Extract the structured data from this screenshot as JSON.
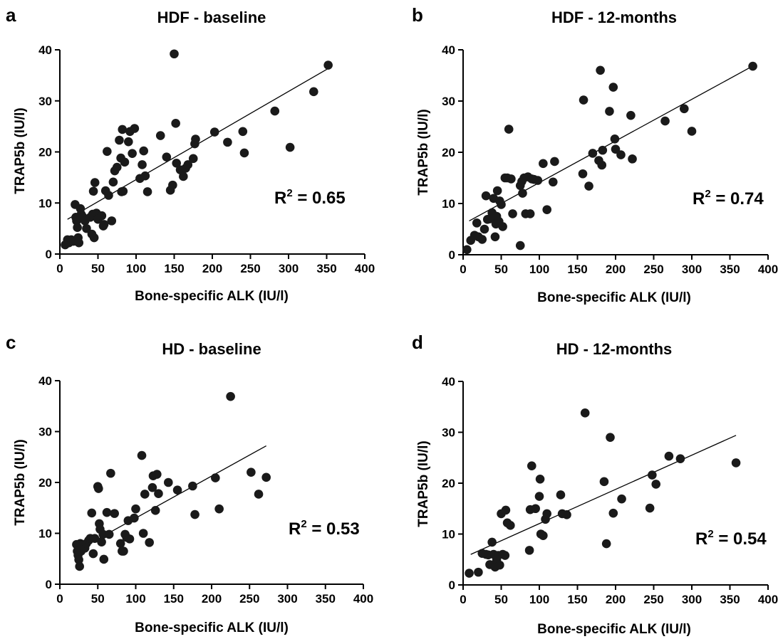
{
  "chart_data": [
    {
      "type": "scatter",
      "panel_letter": "a",
      "title": "HDF - baseline",
      "xlabel": "Bone-specific ALK (IU/l)",
      "ylabel": "TRAP5b (IU/l)",
      "xlim": [
        0,
        400
      ],
      "ylim": [
        0,
        40
      ],
      "xticks": [
        0,
        50,
        100,
        150,
        200,
        250,
        300,
        350,
        400
      ],
      "yticks": [
        0,
        10,
        20,
        30,
        40
      ],
      "r2_prefix": "R",
      "r2_exp": "2",
      "r2_suffix": " = 0.65",
      "fit": {
        "x": [
          10,
          355
        ],
        "y": [
          6.8,
          36.6
        ]
      },
      "points": [
        [
          7,
          1.8
        ],
        [
          10,
          2.8
        ],
        [
          12,
          2.2
        ],
        [
          15,
          2.8
        ],
        [
          18,
          2.5
        ],
        [
          20,
          9.7
        ],
        [
          21,
          7.2
        ],
        [
          22,
          6.5
        ],
        [
          23,
          5.2
        ],
        [
          24,
          3.2
        ],
        [
          25,
          2.2
        ],
        [
          27,
          8.9
        ],
        [
          28,
          7.8
        ],
        [
          30,
          7.3
        ],
        [
          33,
          6.5
        ],
        [
          35,
          5.0
        ],
        [
          40,
          7.2
        ],
        [
          42,
          3.9
        ],
        [
          43,
          7.8
        ],
        [
          44,
          12.3
        ],
        [
          45,
          3.2
        ],
        [
          46,
          14.0
        ],
        [
          48,
          8.0
        ],
        [
          50,
          6.8
        ],
        [
          55,
          7.5
        ],
        [
          57,
          5.5
        ],
        [
          58,
          5.8
        ],
        [
          60,
          12.4
        ],
        [
          62,
          20.1
        ],
        [
          64,
          11.5
        ],
        [
          68,
          6.5
        ],
        [
          70,
          14.1
        ],
        [
          72,
          16.3
        ],
        [
          75,
          17.0
        ],
        [
          78,
          22.3
        ],
        [
          80,
          18.8
        ],
        [
          81,
          12.2
        ],
        [
          82,
          24.4
        ],
        [
          83,
          12.3
        ],
        [
          85,
          18.0
        ],
        [
          90,
          22.0
        ],
        [
          92,
          24.0
        ],
        [
          95,
          19.7
        ],
        [
          98,
          24.6
        ],
        [
          105,
          14.8
        ],
        [
          108,
          17.5
        ],
        [
          110,
          20.2
        ],
        [
          112,
          15.3
        ],
        [
          115,
          12.2
        ],
        [
          132,
          23.2
        ],
        [
          140,
          19.0
        ],
        [
          145,
          12.5
        ],
        [
          148,
          13.5
        ],
        [
          150,
          39.2
        ],
        [
          152,
          25.6
        ],
        [
          153,
          17.8
        ],
        [
          158,
          16.5
        ],
        [
          162,
          15.2
        ],
        [
          165,
          16.8
        ],
        [
          168,
          17.5
        ],
        [
          175,
          18.7
        ],
        [
          177,
          21.6
        ],
        [
          178,
          22.5
        ],
        [
          203,
          23.9
        ],
        [
          220,
          21.9
        ],
        [
          240,
          24.0
        ],
        [
          242,
          19.8
        ],
        [
          282,
          28.0
        ],
        [
          302,
          20.9
        ],
        [
          333,
          31.8
        ],
        [
          352,
          37.0
        ]
      ]
    },
    {
      "type": "scatter",
      "panel_letter": "b",
      "title": "HDF - 12-months",
      "xlabel": "Bone-specific ALK (IU/l)",
      "ylabel": "TRAP5b (IU/l)",
      "xlim": [
        0,
        400
      ],
      "ylim": [
        0,
        40
      ],
      "xticks": [
        0,
        50,
        100,
        150,
        200,
        250,
        300,
        350,
        400
      ],
      "yticks": [
        0,
        10,
        20,
        30,
        40
      ],
      "r2_prefix": "R",
      "r2_exp": "2",
      "r2_suffix": " = 0.74",
      "fit": {
        "x": [
          8,
          382
        ],
        "y": [
          6.6,
          37.0
        ]
      },
      "points": [
        [
          5,
          1.0
        ],
        [
          10,
          2.8
        ],
        [
          15,
          3.8
        ],
        [
          18,
          6.2
        ],
        [
          20,
          3.5
        ],
        [
          25,
          3.0
        ],
        [
          28,
          5.0
        ],
        [
          30,
          11.5
        ],
        [
          32,
          6.9
        ],
        [
          35,
          7.0
        ],
        [
          38,
          8.2
        ],
        [
          40,
          11.0
        ],
        [
          42,
          3.5
        ],
        [
          43,
          6.0
        ],
        [
          44,
          7.5
        ],
        [
          45,
          12.5
        ],
        [
          47,
          6.5
        ],
        [
          48,
          10.5
        ],
        [
          50,
          9.8
        ],
        [
          52,
          5.5
        ],
        [
          55,
          15.0
        ],
        [
          58,
          15.0
        ],
        [
          60,
          24.5
        ],
        [
          63,
          14.8
        ],
        [
          65,
          8.0
        ],
        [
          75,
          1.8
        ],
        [
          75,
          13.5
        ],
        [
          77,
          14.3
        ],
        [
          78,
          12.0
        ],
        [
          80,
          15.0
        ],
        [
          82,
          8.0
        ],
        [
          85,
          15.2
        ],
        [
          88,
          8.0
        ],
        [
          90,
          14.8
        ],
        [
          93,
          14.7
        ],
        [
          98,
          14.5
        ],
        [
          105,
          17.8
        ],
        [
          110,
          8.8
        ],
        [
          118,
          14.2
        ],
        [
          120,
          18.2
        ],
        [
          157,
          15.8
        ],
        [
          158,
          30.2
        ],
        [
          165,
          13.4
        ],
        [
          170,
          19.8
        ],
        [
          178,
          18.4
        ],
        [
          180,
          36.0
        ],
        [
          182,
          17.5
        ],
        [
          183,
          20.4
        ],
        [
          192,
          28.0
        ],
        [
          197,
          32.7
        ],
        [
          199,
          22.6
        ],
        [
          200,
          20.6
        ],
        [
          207,
          19.5
        ],
        [
          220,
          27.2
        ],
        [
          222,
          18.7
        ],
        [
          265,
          26.1
        ],
        [
          290,
          28.5
        ],
        [
          300,
          24.1
        ],
        [
          380,
          36.8
        ]
      ]
    },
    {
      "type": "scatter",
      "panel_letter": "c",
      "title": "HD - baseline",
      "xlabel": "Bone-specific ALK (IU/l)",
      "ylabel": "TRAP5b (IU/l)",
      "xlim": [
        0,
        400
      ],
      "ylim": [
        0,
        40
      ],
      "xticks": [
        0,
        50,
        100,
        150,
        200,
        250,
        300,
        350,
        400
      ],
      "yticks": [
        0,
        10,
        20,
        30,
        40
      ],
      "r2_prefix": "R",
      "r2_exp": "2",
      "r2_suffix": " = 0.53",
      "fit": {
        "x": [
          20,
          272
        ],
        "y": [
          6.4,
          27.2
        ]
      },
      "points": [
        [
          22,
          7.8
        ],
        [
          23,
          6.5
        ],
        [
          24,
          5.7
        ],
        [
          25,
          4.8
        ],
        [
          26,
          3.5
        ],
        [
          27,
          8.0
        ],
        [
          28,
          6.5
        ],
        [
          30,
          7.5
        ],
        [
          33,
          7.1
        ],
        [
          35,
          8.0
        ],
        [
          38,
          8.6
        ],
        [
          40,
          9.0
        ],
        [
          42,
          14.0
        ],
        [
          44,
          6.0
        ],
        [
          46,
          9.0
        ],
        [
          50,
          19.2
        ],
        [
          51,
          18.8
        ],
        [
          52,
          11.9
        ],
        [
          53,
          10.8
        ],
        [
          55,
          8.3
        ],
        [
          57,
          9.8
        ],
        [
          58,
          4.9
        ],
        [
          62,
          14.1
        ],
        [
          65,
          9.8
        ],
        [
          67,
          21.8
        ],
        [
          72,
          13.9
        ],
        [
          80,
          8.0
        ],
        [
          82,
          6.5
        ],
        [
          84,
          6.5
        ],
        [
          86,
          9.8
        ],
        [
          88,
          9.2
        ],
        [
          90,
          12.5
        ],
        [
          92,
          8.9
        ],
        [
          98,
          13.0
        ],
        [
          100,
          14.8
        ],
        [
          108,
          25.3
        ],
        [
          110,
          10.0
        ],
        [
          112,
          17.7
        ],
        [
          118,
          8.2
        ],
        [
          122,
          19.0
        ],
        [
          123,
          21.3
        ],
        [
          126,
          14.5
        ],
        [
          128,
          21.6
        ],
        [
          130,
          17.8
        ],
        [
          143,
          20.0
        ],
        [
          155,
          18.5
        ],
        [
          175,
          19.3
        ],
        [
          178,
          13.7
        ],
        [
          205,
          20.9
        ],
        [
          210,
          14.8
        ],
        [
          225,
          36.9
        ],
        [
          252,
          22.0
        ],
        [
          262,
          17.7
        ],
        [
          272,
          21.0
        ]
      ]
    },
    {
      "type": "scatter",
      "panel_letter": "d",
      "title": "HD - 12-months",
      "xlabel": "Bone-specific ALK (IU/l)",
      "ylabel": "TRAP5b (IU/l)",
      "xlim": [
        0,
        400
      ],
      "ylim": [
        0,
        40
      ],
      "xticks": [
        0,
        50,
        100,
        150,
        200,
        250,
        300,
        350,
        400
      ],
      "yticks": [
        0,
        10,
        20,
        30,
        40
      ],
      "r2_prefix": "R",
      "r2_exp": "2",
      "r2_suffix": " = 0.54",
      "fit": {
        "x": [
          10,
          358
        ],
        "y": [
          6.0,
          29.4
        ]
      },
      "points": [
        [
          8,
          2.3
        ],
        [
          20,
          2.5
        ],
        [
          25,
          6.2
        ],
        [
          30,
          6.0
        ],
        [
          33,
          5.9
        ],
        [
          35,
          4.0
        ],
        [
          38,
          8.4
        ],
        [
          40,
          6.0
        ],
        [
          42,
          3.5
        ],
        [
          44,
          4.9
        ],
        [
          46,
          5.8
        ],
        [
          48,
          3.9
        ],
        [
          50,
          14.0
        ],
        [
          52,
          6.0
        ],
        [
          55,
          5.8
        ],
        [
          56,
          14.7
        ],
        [
          58,
          12.2
        ],
        [
          62,
          11.7
        ],
        [
          87,
          6.8
        ],
        [
          88,
          14.8
        ],
        [
          90,
          23.4
        ],
        [
          95,
          15.0
        ],
        [
          100,
          17.4
        ],
        [
          101,
          20.8
        ],
        [
          102,
          10.0
        ],
        [
          105,
          9.7
        ],
        [
          108,
          12.9
        ],
        [
          110,
          14.0
        ],
        [
          128,
          17.7
        ],
        [
          130,
          14.0
        ],
        [
          136,
          13.8
        ],
        [
          160,
          33.8
        ],
        [
          185,
          20.3
        ],
        [
          188,
          8.1
        ],
        [
          193,
          29.0
        ],
        [
          197,
          14.1
        ],
        [
          208,
          16.9
        ],
        [
          245,
          15.1
        ],
        [
          248,
          21.6
        ],
        [
          253,
          19.8
        ],
        [
          270,
          25.3
        ],
        [
          285,
          24.8
        ],
        [
          358,
          24.0
        ]
      ]
    }
  ]
}
